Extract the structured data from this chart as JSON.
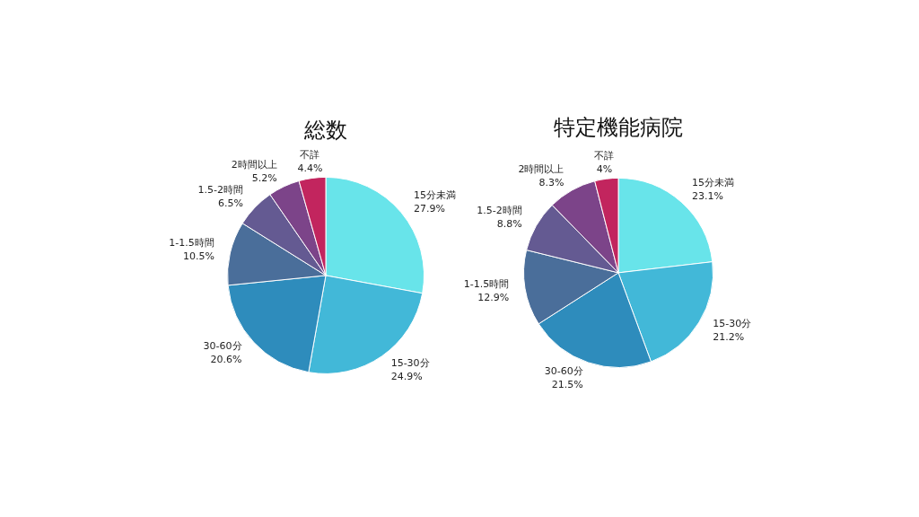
{
  "chart_data": [
    {
      "type": "pie",
      "title": "総数",
      "categories": [
        "15分未満",
        "15-30分",
        "30-60分",
        "1-1.5時間",
        "1.5-2時間",
        "2時間以上",
        "不詳"
      ],
      "values": [
        27.9,
        24.9,
        20.6,
        10.5,
        6.5,
        5.2,
        4.4
      ],
      "value_labels": [
        "27.9%",
        "24.9%",
        "20.6%",
        "10.5%",
        "6.5%",
        "5.2%",
        "4.4%"
      ],
      "colors": [
        "#68e4ea",
        "#42b8d8",
        "#2e8cbc",
        "#4a6e9a",
        "#645a92",
        "#7c4489",
        "#c2255e"
      ],
      "legend": false
    },
    {
      "type": "pie",
      "title": "特定機能病院",
      "categories": [
        "15分未満",
        "15-30分",
        "30-60分",
        "1-1.5時間",
        "1.5-2時間",
        "2時間以上",
        "不詳"
      ],
      "values": [
        23.1,
        21.2,
        21.5,
        12.9,
        8.8,
        8.3,
        4
      ],
      "value_labels": [
        "23.1%",
        "21.2%",
        "21.5%",
        "12.9%",
        "8.8%",
        "8.3%",
        "4%"
      ],
      "colors": [
        "#68e4ea",
        "#42b8d8",
        "#2e8cbc",
        "#4a6e9a",
        "#645a92",
        "#7c4489",
        "#c2255e"
      ],
      "legend": false
    }
  ]
}
